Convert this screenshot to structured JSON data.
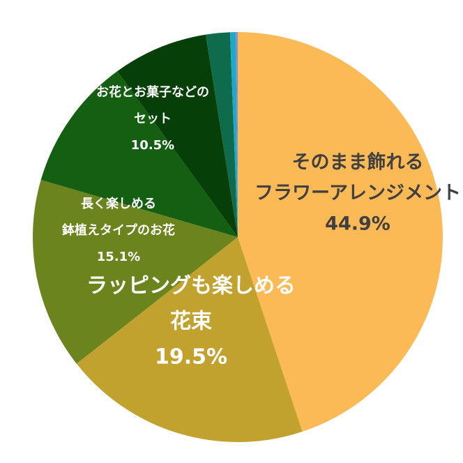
{
  "chart_data": {
    "type": "pie",
    "title": "",
    "start_angle_deg": 0,
    "direction": "clockwise",
    "slices": [
      {
        "label_lines": [
          "そのまま飾れる",
          "フラワーアレンジメント"
        ],
        "percent_text": "44.9%",
        "value": 44.9,
        "color": "#FBBA55",
        "label_color": "#404040",
        "label_size": "large"
      },
      {
        "label_lines": [
          "ラッピングも楽しめる",
          "花束"
        ],
        "percent_text": "19.5%",
        "value": 19.5,
        "color": "#C2A22E",
        "label_color": "#ffffff",
        "label_size": "large"
      },
      {
        "label_lines": [
          "長く楽しめる",
          "鉢植えタイプのお花"
        ],
        "percent_text": "15.1%",
        "value": 15.1,
        "color": "#6B841E",
        "label_color": "#ffffff",
        "label_size": "small"
      },
      {
        "label_lines": [
          "お花とお菓子などの",
          "セット"
        ],
        "percent_text": "10.5%",
        "value": 10.5,
        "color": "#145F12",
        "label_color": "#ffffff",
        "label_size": "small"
      },
      {
        "label_lines": [],
        "percent_text": "",
        "value": 7.5,
        "color": "#063F07",
        "label_color": "#ffffff",
        "label_size": "small"
      },
      {
        "label_lines": [],
        "percent_text": "",
        "value": 1.9,
        "color": "#0E6B4C",
        "label_color": "#ffffff",
        "label_size": "small"
      },
      {
        "label_lines": [],
        "percent_text": "",
        "value": 0.45,
        "color": "#1DA9C9",
        "label_color": "#ffffff",
        "label_size": "small"
      },
      {
        "label_lines": [],
        "percent_text": "",
        "value": 0.15,
        "color": "#8A8FC8",
        "label_color": "#ffffff",
        "label_size": "small"
      }
    ]
  }
}
